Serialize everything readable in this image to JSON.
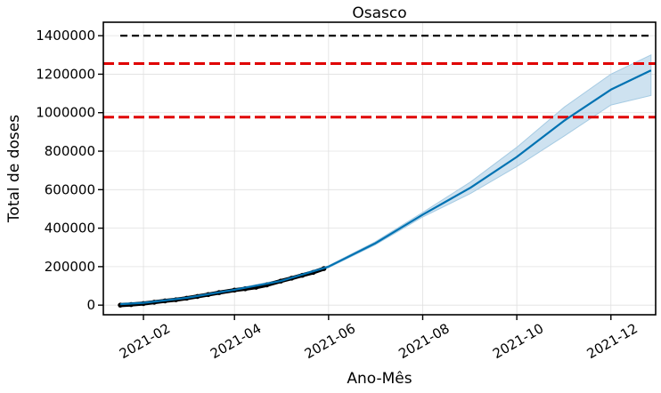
{
  "chart_data": {
    "type": "line",
    "title": "Osasco",
    "xlabel": "Ano-Mês",
    "ylabel": "Total de doses",
    "x_range": [
      "2021-01-06",
      "2021-12-30"
    ],
    "ylim": [
      -50000,
      1470000
    ],
    "x_ticks": [
      "2021-02-01",
      "2021-04-01",
      "2021-06-01",
      "2021-08-01",
      "2021-10-01",
      "2021-12-01"
    ],
    "x_tick_labels": [
      "2021-02",
      "2021-04",
      "2021-06",
      "2021-08",
      "2021-10",
      "2021-12"
    ],
    "y_ticks": [
      0,
      200000,
      400000,
      600000,
      800000,
      1000000,
      1200000,
      1400000
    ],
    "y_tick_labels": [
      "0",
      "200000",
      "400000",
      "600000",
      "800000",
      "1000000",
      "1200000",
      "1400000"
    ],
    "grid": true,
    "reference_lines": [
      {
        "y": 1400000,
        "color": "#000000",
        "style": "dashed",
        "x_start": "2021-01-17",
        "x_end": "2021-12-27"
      },
      {
        "y": 1255000,
        "color": "#e00000",
        "style": "dashed",
        "full_width": true
      },
      {
        "y": 977000,
        "color": "#e00000",
        "style": "dashed",
        "full_width": true
      }
    ],
    "observed": {
      "color": "#000000",
      "x": [
        "2021-01-17",
        "2021-01-24",
        "2021-02-01",
        "2021-02-08",
        "2021-02-15",
        "2021-02-22",
        "2021-03-01",
        "2021-03-08",
        "2021-03-15",
        "2021-03-22",
        "2021-04-01",
        "2021-04-08",
        "2021-04-15",
        "2021-04-22",
        "2021-05-01",
        "2021-05-08",
        "2021-05-15",
        "2021-05-22",
        "2021-05-29"
      ],
      "y": [
        0,
        3000,
        8000,
        15000,
        22000,
        28000,
        36000,
        45000,
        55000,
        65000,
        78000,
        85000,
        93000,
        105000,
        125000,
        140000,
        155000,
        170000,
        190000
      ]
    },
    "forecast": {
      "color": "#0072b2",
      "band_color": "#a6cbe3",
      "x": [
        "2021-01-17",
        "2021-02-01",
        "2021-03-01",
        "2021-04-01",
        "2021-05-01",
        "2021-06-01",
        "2021-07-01",
        "2021-08-01",
        "2021-09-01",
        "2021-10-01",
        "2021-11-01",
        "2021-12-01",
        "2021-12-27"
      ],
      "y": [
        5000,
        12000,
        38000,
        80000,
        125000,
        200000,
        320000,
        470000,
        610000,
        770000,
        960000,
        1120000,
        1220000
      ],
      "lower": [
        0,
        7000,
        33000,
        75000,
        119000,
        195000,
        312000,
        458000,
        580000,
        720000,
        880000,
        1040000,
        1090000
      ],
      "upper": [
        10000,
        17000,
        43000,
        85000,
        131000,
        205000,
        328000,
        482000,
        640000,
        820000,
        1030000,
        1200000,
        1300000
      ]
    }
  }
}
